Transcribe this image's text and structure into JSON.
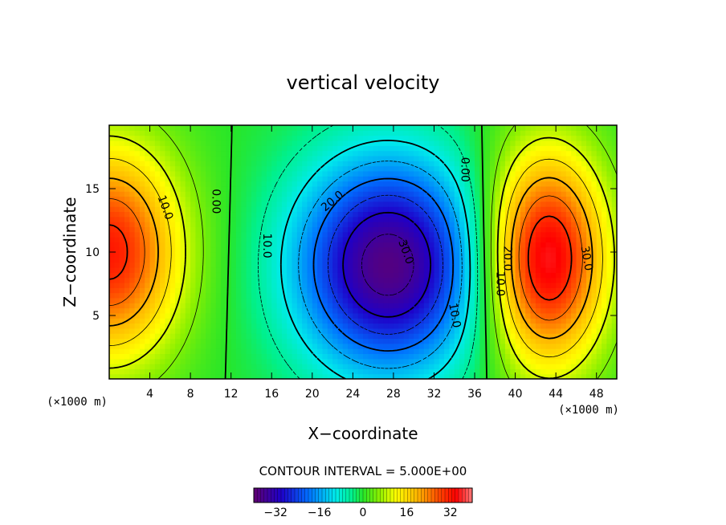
{
  "chart_data": {
    "type": "contour",
    "title": "vertical velocity",
    "xlabel": "X−coordinate",
    "ylabel": "Z−coordinate",
    "x_unit": "(×1000 m)",
    "z_unit": "(×1000 m)",
    "xlim": [
      0,
      50
    ],
    "ylim": [
      0,
      20
    ],
    "x_ticks": [
      4,
      8,
      12,
      16,
      20,
      24,
      28,
      32,
      36,
      40,
      44,
      48
    ],
    "x_tick_labels": [
      "4",
      "8",
      "12",
      "16",
      "20",
      "24",
      "28",
      "32",
      "36",
      "40",
      "44",
      "48"
    ],
    "y_ticks": [
      5,
      10,
      15
    ],
    "y_tick_labels": [
      "5",
      "10",
      "15"
    ],
    "contour_interval_text": "CONTOUR INTERVAL = 5.000E+00",
    "contour_interval": 5,
    "colorbar": {
      "range": [
        -40,
        40
      ],
      "ticks": [
        -32,
        -16,
        0,
        16,
        32
      ],
      "tick_labels": [
        "−32",
        "−16",
        "0",
        "16",
        "32"
      ]
    },
    "cells": [
      {
        "name": "left-updraft",
        "x": 0,
        "z": 10,
        "amplitude": 32,
        "sx": 5,
        "sz": 6
      },
      {
        "name": "central-downdraft",
        "x": 27.5,
        "z": 9,
        "amplitude": -38,
        "sx": 6.5,
        "sz": 6
      },
      {
        "name": "right-updraft",
        "x": 43,
        "z": 9.5,
        "amplitude": 37,
        "sx": 4.2,
        "sz": 6
      }
    ],
    "contour_labels": [
      {
        "text": "10.0",
        "x": 5.5,
        "z": 13.5,
        "rot": 70
      },
      {
        "text": "0.00",
        "x": 10.5,
        "z": 14,
        "rot": 90
      },
      {
        "text": "10.0",
        "x": 15.5,
        "z": 10.5,
        "rot": 90
      },
      {
        "text": "20.0",
        "x": 22,
        "z": 14,
        "rot": -40
      },
      {
        "text": "30.0",
        "x": 29.2,
        "z": 10,
        "rot": 70
      },
      {
        "text": "10.0",
        "x": 34,
        "z": 5,
        "rot": 80
      },
      {
        "text": "0.00",
        "x": 35,
        "z": 16.5,
        "rot": 90
      },
      {
        "text": "20.0",
        "x": 39.2,
        "z": 9.5,
        "rot": 90
      },
      {
        "text": "10.0",
        "x": 38.5,
        "z": 7.5,
        "rot": 90
      },
      {
        "text": "30.0",
        "x": 47,
        "z": 9.5,
        "rot": 80
      }
    ]
  }
}
